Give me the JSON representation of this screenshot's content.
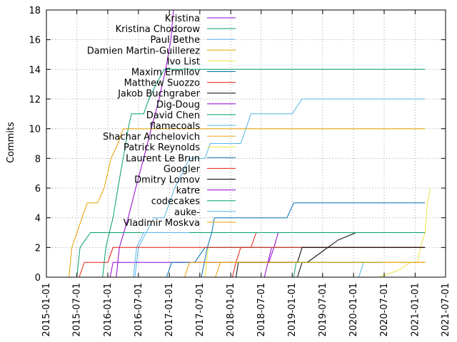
{
  "chart_data": {
    "type": "line",
    "ylabel": "Commits",
    "ylim": [
      0,
      18
    ],
    "xlim": [
      "2015-01-01",
      "2021-07-01"
    ],
    "yticks": [
      0,
      2,
      4,
      6,
      8,
      10,
      12,
      14,
      16,
      18
    ],
    "xticks": [
      "2015-01-01",
      "2015-07-01",
      "2016-01-01",
      "2016-07-01",
      "2017-01-01",
      "2017-07-01",
      "2018-01-01",
      "2018-07-01",
      "2019-01-01",
      "2019-07-01",
      "2020-01-01",
      "2020-07-01",
      "2021-01-01",
      "2021-07-01"
    ],
    "grid": true,
    "legend_position": "top-left",
    "series": [
      {
        "name": "Kristina",
        "color": "#9400d3",
        "points": [
          [
            "2016-02-20",
            0
          ],
          [
            "2016-03-10",
            2
          ],
          [
            "2016-05-01",
            4
          ],
          [
            "2016-06-15",
            6
          ],
          [
            "2016-08-01",
            8
          ],
          [
            "2016-09-15",
            10
          ],
          [
            "2016-11-01",
            12
          ],
          [
            "2016-12-10",
            14
          ],
          [
            "2017-01-10",
            16
          ],
          [
            "2017-01-25",
            18
          ]
        ]
      },
      {
        "name": "Kristina Chodorow",
        "color": "#009e73",
        "points": [
          [
            "2015-12-01",
            0
          ],
          [
            "2015-12-20",
            2
          ],
          [
            "2016-01-10",
            3
          ],
          [
            "2016-02-01",
            4
          ],
          [
            "2016-03-01",
            6
          ],
          [
            "2016-04-01",
            8
          ],
          [
            "2016-05-01",
            10
          ],
          [
            "2016-05-20",
            11
          ],
          [
            "2016-08-01",
            11
          ],
          [
            "2016-09-01",
            12
          ],
          [
            "2016-10-15",
            13
          ],
          [
            "2016-12-01",
            14
          ],
          [
            "2021-03-01",
            14
          ]
        ]
      },
      {
        "name": "Paul Bethe",
        "color": "#56b4e9",
        "points": [
          [
            "2016-06-10",
            0
          ],
          [
            "2016-07-01",
            2
          ],
          [
            "2016-10-01",
            4
          ],
          [
            "2016-12-01",
            4
          ],
          [
            "2017-02-01",
            6
          ],
          [
            "2017-05-01",
            8
          ],
          [
            "2017-08-01",
            8
          ],
          [
            "2017-09-01",
            9
          ],
          [
            "2018-01-01",
            9
          ],
          [
            "2018-03-01",
            9
          ],
          [
            "2018-04-01",
            10
          ],
          [
            "2018-05-01",
            11
          ],
          [
            "2019-01-01",
            11
          ],
          [
            "2019-03-01",
            12
          ],
          [
            "2021-03-01",
            12
          ]
        ]
      },
      {
        "name": "Damien Martin-Guillerez",
        "color": "#e69f00",
        "points": [
          [
            "2015-05-15",
            0
          ],
          [
            "2015-06-01",
            2
          ],
          [
            "2015-08-01",
            4
          ],
          [
            "2015-09-01",
            5
          ],
          [
            "2015-11-01",
            5
          ],
          [
            "2015-12-10",
            6
          ],
          [
            "2016-01-20",
            8
          ],
          [
            "2016-03-01",
            9
          ],
          [
            "2016-04-01",
            10
          ],
          [
            "2021-03-01",
            10
          ]
        ]
      },
      {
        "name": "Ivo List",
        "color": "#f0e442",
        "points": [
          [
            "2020-06-01",
            0
          ],
          [
            "2020-10-01",
            0.5
          ],
          [
            "2020-12-01",
            1
          ],
          [
            "2021-01-15",
            1
          ],
          [
            "2021-02-01",
            2
          ],
          [
            "2021-03-01",
            3
          ],
          [
            "2021-03-15",
            5
          ],
          [
            "2021-04-01",
            6
          ]
        ]
      },
      {
        "name": "Maxim Ermilov",
        "color": "#0072b2",
        "points": [
          [
            "2017-07-10",
            0
          ],
          [
            "2017-08-15",
            2
          ],
          [
            "2017-09-10",
            3
          ],
          [
            "2017-09-25",
            4
          ],
          [
            "2018-12-01",
            4
          ],
          [
            "2019-01-10",
            5
          ],
          [
            "2021-03-01",
            5
          ]
        ]
      },
      {
        "name": "Matthew Suozzo",
        "color": "#e51e10",
        "points": [
          [
            "2018-01-10",
            0
          ],
          [
            "2018-02-01",
            1
          ],
          [
            "2018-03-01",
            2
          ],
          [
            "2018-05-01",
            2
          ],
          [
            "2018-06-01",
            3
          ]
        ]
      },
      {
        "name": "Jakob Buchgraber",
        "color": "#000000",
        "points": [
          [
            "2019-02-01",
            0
          ],
          [
            "2019-03-01",
            1
          ],
          [
            "2019-04-01",
            1
          ],
          [
            "2019-08-01",
            2
          ],
          [
            "2019-10-01",
            2.5
          ],
          [
            "2020-01-15",
            3
          ]
        ]
      },
      {
        "name": "Dig-Doug",
        "color": "#9400d3",
        "points": [
          [
            "2016-01-15",
            0
          ],
          [
            "2016-02-01",
            1
          ],
          [
            "2018-08-15",
            1
          ],
          [
            "2018-09-15",
            2
          ],
          [
            "2018-10-10",
            3
          ]
        ]
      },
      {
        "name": "David Chen",
        "color": "#009e73",
        "points": [
          [
            "2015-07-01",
            0
          ],
          [
            "2015-07-20",
            2
          ],
          [
            "2015-09-20",
            3
          ],
          [
            "2021-03-01",
            3
          ]
        ]
      },
      {
        "name": "flamecoals",
        "color": "#56b4e9",
        "points": [
          [
            "2016-06-01",
            0
          ],
          [
            "2016-06-20",
            2
          ],
          [
            "2016-08-01",
            3
          ],
          [
            "2016-10-01",
            3
          ],
          [
            "2017-05-01",
            3
          ]
        ]
      },
      {
        "name": "Shachar Anchelovich",
        "color": "#e69f00",
        "points": [
          [
            "2017-10-01",
            0
          ],
          [
            "2017-11-01",
            1
          ],
          [
            "2021-03-01",
            1
          ]
        ]
      },
      {
        "name": "Patrick Reynolds",
        "color": "#f0e442",
        "points": [
          [
            "2017-08-01",
            0
          ],
          [
            "2017-08-20",
            2
          ],
          [
            "2021-03-01",
            2
          ]
        ]
      },
      {
        "name": "Laurent Le Brun",
        "color": "#0072b2",
        "points": [
          [
            "2016-12-15",
            0
          ],
          [
            "2017-01-15",
            1
          ],
          [
            "2017-06-01",
            1
          ],
          [
            "2017-08-01",
            2
          ],
          [
            "2021-03-01",
            2
          ]
        ]
      },
      {
        "name": "Googler",
        "color": "#e51e10",
        "points": [
          [
            "2015-07-15",
            0
          ],
          [
            "2015-08-15",
            1
          ],
          [
            "2016-01-01",
            1
          ],
          [
            "2016-02-01",
            2
          ],
          [
            "2021-03-01",
            2
          ]
        ]
      },
      {
        "name": "Dmitry Lomov",
        "color": "#000000",
        "points": [
          [
            "2018-02-01",
            0
          ],
          [
            "2018-02-15",
            1
          ],
          [
            "2019-02-01",
            1
          ],
          [
            "2019-03-01",
            2
          ],
          [
            "2021-03-01",
            2
          ]
        ]
      },
      {
        "name": "katre",
        "color": "#9400d3",
        "points": [
          [
            "2018-07-20",
            0
          ],
          [
            "2018-08-10",
            1
          ],
          [
            "2018-09-01",
            2
          ]
        ]
      },
      {
        "name": "codecakes",
        "color": "#009e73",
        "points": [
          [
            "2019-01-10",
            0
          ],
          [
            "2019-01-25",
            1
          ],
          [
            "2019-06-01",
            1
          ],
          [
            "2020-05-01",
            1
          ],
          [
            "2020-06-15",
            1
          ]
        ]
      },
      {
        "name": "auke-",
        "color": "#56b4e9",
        "points": [
          [
            "2020-02-01",
            0
          ],
          [
            "2020-03-01",
            1
          ]
        ]
      },
      {
        "name": "Vladimir Moskva",
        "color": "#e69f00",
        "points": [
          [
            "2017-04-01",
            0
          ],
          [
            "2017-05-01",
            1
          ],
          [
            "2021-03-01",
            1
          ]
        ]
      }
    ]
  }
}
